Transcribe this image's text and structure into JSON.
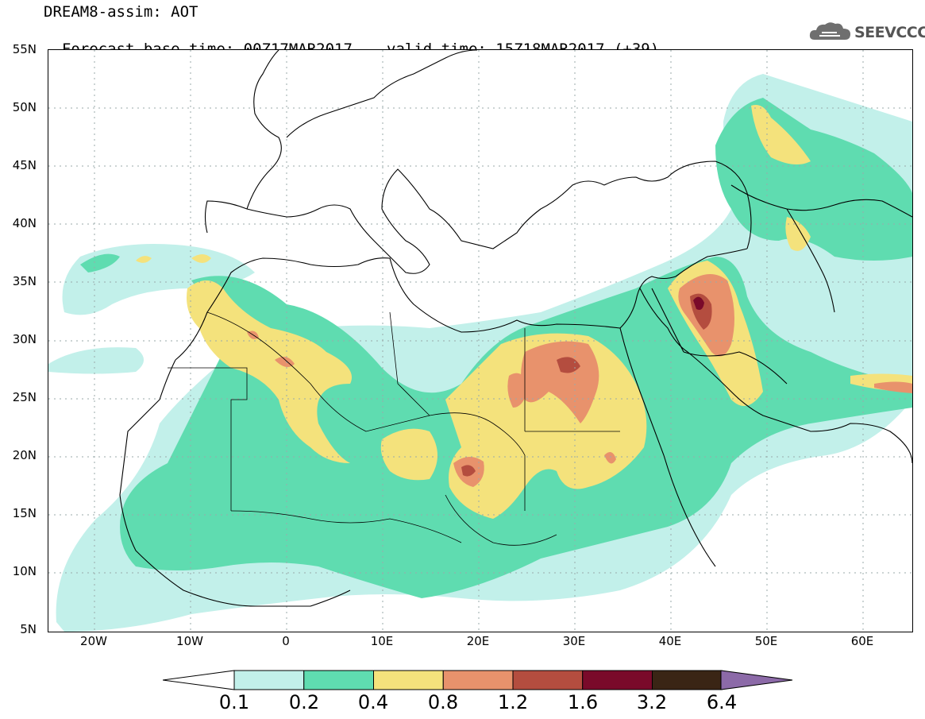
{
  "title": {
    "line1": "DREAM8-assim: AOT",
    "line2_left": "Forecast base time: 00Z17MAR2017",
    "line2_right": "valid time: 15Z18MAR2017 (+39)"
  },
  "logo": {
    "text": "SEEVCCC",
    "icon": "cloud-icon"
  },
  "map": {
    "region": {
      "lon_range": [
        -25,
        65
      ],
      "lat_range": [
        5,
        55
      ]
    },
    "y_ticks": [
      "55N",
      "50N",
      "45N",
      "40N",
      "35N",
      "30N",
      "25N",
      "20N",
      "15N",
      "10N",
      "5N"
    ],
    "x_ticks": [
      "20W",
      "10W",
      "0",
      "10E",
      "20E",
      "30E",
      "40E",
      "50E",
      "60E"
    ]
  },
  "colorbar": {
    "labels": [
      "0.1",
      "0.2",
      "0.4",
      "0.8",
      "1.2",
      "1.6",
      "3.2",
      "6.4"
    ],
    "colors": [
      "#c2f0ea",
      "#5fdcb0",
      "#f4e27c",
      "#e8926c",
      "#b44d3f",
      "#7a0a2a",
      "#3a2515",
      "#8c6aa8"
    ]
  }
}
